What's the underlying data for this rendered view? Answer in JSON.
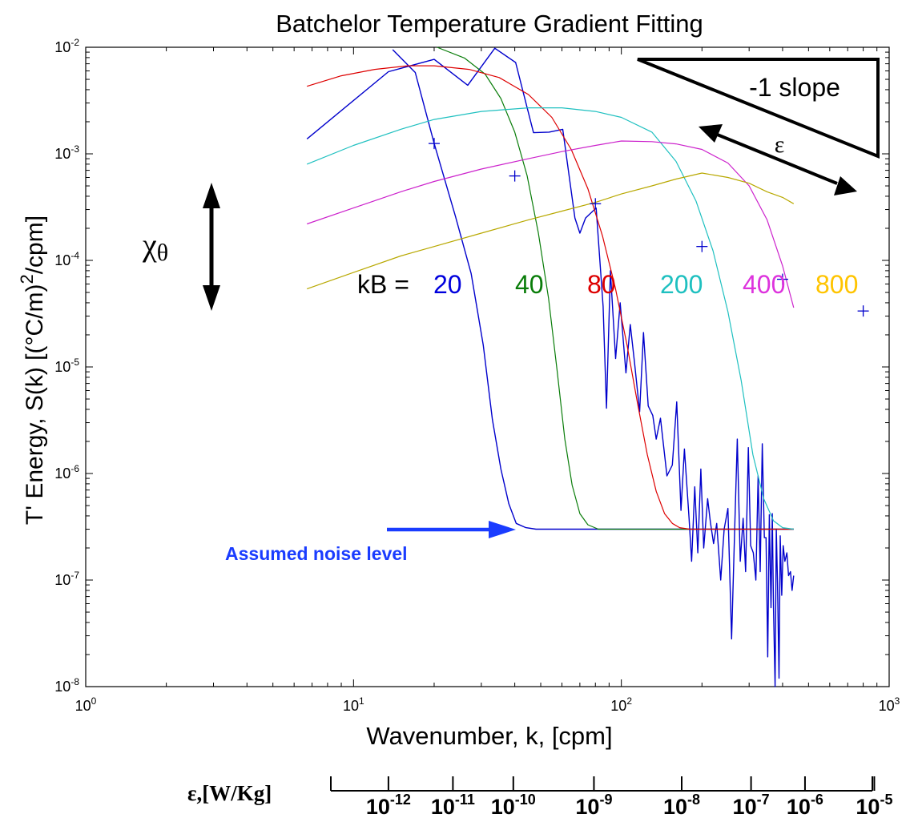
{
  "chart_data": {
    "type": "line",
    "title": "Batchelor Temperature Gradient Fitting",
    "xlabel": "Wavenumber, k, [cpm]",
    "ylabel_parts": [
      "T' Energy, S(k) [(°C/m)",
      "2",
      "/cpm]"
    ],
    "xscale": "log",
    "yscale": "log",
    "xlim": [
      1,
      1000
    ],
    "ylim": [
      1e-08,
      0.01
    ],
    "grid": false,
    "x_ticks": [
      {
        "value": 1,
        "base": "10",
        "exp": "0"
      },
      {
        "value": 10,
        "base": "10",
        "exp": "1"
      },
      {
        "value": 100,
        "base": "10",
        "exp": "2"
      },
      {
        "value": 1000,
        "base": "10",
        "exp": "3"
      }
    ],
    "y_ticks": [
      {
        "value": 0.01,
        "base": "10",
        "exp": "-2"
      },
      {
        "value": 0.001,
        "base": "10",
        "exp": "-3"
      },
      {
        "value": 0.0001,
        "base": "10",
        "exp": "-4"
      },
      {
        "value": 1e-05,
        "base": "10",
        "exp": "-5"
      },
      {
        "value": 1e-06,
        "base": "10",
        "exp": "-6"
      },
      {
        "value": 1e-07,
        "base": "10",
        "exp": "-7"
      },
      {
        "value": 1e-08,
        "base": "10",
        "exp": "-8"
      }
    ],
    "series": [
      {
        "color": "#0000cc",
        "stroke_width": 1.4,
        "points": [
          [
            6.7,
            0.00138
          ],
          [
            13.5,
            0.0059
          ],
          [
            20,
            0.0077
          ],
          [
            26.7,
            0.0044
          ],
          [
            33.7,
            0.0098
          ],
          [
            40.3,
            0.0072
          ],
          [
            47,
            0.00158
          ],
          [
            53.7,
            0.0016
          ],
          [
            60.4,
            0.0017
          ],
          [
            67.1,
            0.00025
          ],
          [
            70,
            0.00018
          ],
          [
            73.5,
            0.00025
          ],
          [
            80.5,
            0.00031
          ],
          [
            85.5,
            3.7e-05
          ],
          [
            88,
            4.1e-06
          ],
          [
            91,
            8e-05
          ],
          [
            95.2,
            1.2e-05
          ],
          [
            99,
            4e-05
          ],
          [
            104,
            8.8e-06
          ],
          [
            108,
            2.5e-05
          ],
          [
            112,
            1.1e-05
          ],
          [
            117,
            3.8e-06
          ],
          [
            121,
            2.1e-05
          ],
          [
            126,
            4.3e-06
          ],
          [
            131,
            3.5e-06
          ],
          [
            135,
            2.1e-06
          ],
          [
            140,
            3.3e-06
          ],
          [
            148,
            9.5e-07
          ],
          [
            155,
            1.2e-06
          ],
          [
            161,
            4.7e-06
          ],
          [
            167,
            4.5e-07
          ],
          [
            172,
            1.7e-06
          ],
          [
            179,
            3.8e-07
          ],
          [
            183,
            1.5e-07
          ],
          [
            188,
            7.5e-07
          ],
          [
            193,
            1.8e-07
          ],
          [
            198,
            1.1e-06
          ],
          [
            203,
            2e-07
          ],
          [
            210,
            5.8e-07
          ],
          [
            215,
            3.5e-07
          ],
          [
            221,
            2.2e-07
          ],
          [
            227,
            3.4e-07
          ],
          [
            235,
            1e-07
          ],
          [
            242,
            3e-07
          ],
          [
            250,
            4.7e-07
          ],
          [
            258,
            2.8e-08
          ],
          [
            265,
            3.1e-07
          ],
          [
            271,
            2.1e-06
          ],
          [
            278,
            1.5e-07
          ],
          [
            285,
            3.8e-07
          ],
          [
            291,
            1.2e-07
          ],
          [
            298,
            1.75e-06
          ],
          [
            304,
            2.1e-07
          ],
          [
            311,
            1.8e-07
          ],
          [
            318,
            1e-07
          ],
          [
            324,
            9.5e-07
          ],
          [
            330,
            1.2e-07
          ],
          [
            336,
            1.9e-06
          ],
          [
            342,
            2.5e-07
          ],
          [
            347,
            2.5e-07
          ],
          [
            352,
            1.9e-08
          ],
          [
            357,
            4.1e-07
          ],
          [
            362,
            5.5e-08
          ],
          [
            366,
            4.2e-07
          ],
          [
            370,
            5.5e-08
          ],
          [
            375,
            9e-09
          ],
          [
            379,
            3e-07
          ],
          [
            383,
            9.5e-08
          ],
          [
            388,
            1.2e-08
          ],
          [
            392,
            2.6e-07
          ],
          [
            397,
            7.2e-08
          ],
          [
            402,
            2.1e-07
          ],
          [
            408,
            1.5e-07
          ],
          [
            415,
            1.8e-07
          ],
          [
            421,
            1.1e-07
          ],
          [
            428,
            1.2e-07
          ],
          [
            434,
            8e-08
          ],
          [
            440,
            1.1e-07
          ]
        ]
      },
      {
        "color": "#0000cc",
        "stroke_width": 1.4,
        "points": [
          [
            14,
            0.0095
          ],
          [
            17,
            0.0058
          ],
          [
            20,
            0.00125
          ],
          [
            24,
            0.00026
          ],
          [
            27.5,
            7.5e-05
          ],
          [
            30.5,
            1.6e-05
          ],
          [
            33,
            3.2e-06
          ],
          [
            35.5,
            1.1e-06
          ],
          [
            38,
            5.2e-07
          ],
          [
            40.5,
            3.4e-07
          ],
          [
            44,
            3.1e-07
          ],
          [
            48,
            3e-07
          ],
          [
            100,
            3e-07
          ],
          [
            440,
            3e-07
          ]
        ]
      },
      {
        "color": "#0a7d0a",
        "stroke_width": 1.2,
        "points": [
          [
            20.5,
            0.01
          ],
          [
            26,
            0.0079
          ],
          [
            31,
            0.0056
          ],
          [
            35.5,
            0.0033
          ],
          [
            40,
            0.0016
          ],
          [
            44.5,
            0.00062
          ],
          [
            49,
            0.00018
          ],
          [
            53.5,
            4.4e-05
          ],
          [
            57.5,
            9.5e-06
          ],
          [
            61.5,
            2.1e-06
          ],
          [
            65.5,
            7.8e-07
          ],
          [
            70,
            4.2e-07
          ],
          [
            75,
            3.3e-07
          ],
          [
            82,
            3e-07
          ],
          [
            100,
            3e-07
          ],
          [
            440,
            3e-07
          ]
        ]
      },
      {
        "color": "#dd0000",
        "stroke_width": 1.2,
        "points": [
          [
            6.7,
            0.0043
          ],
          [
            9,
            0.0054
          ],
          [
            12,
            0.0062
          ],
          [
            16,
            0.0067
          ],
          [
            20,
            0.0067
          ],
          [
            27,
            0.0062
          ],
          [
            35,
            0.0052
          ],
          [
            45,
            0.0036
          ],
          [
            55,
            0.0022
          ],
          [
            65,
            0.0011
          ],
          [
            75,
            0.00047
          ],
          [
            85,
            0.00017
          ],
          [
            95,
            5.5e-05
          ],
          [
            105,
            1.6e-05
          ],
          [
            115,
            4.5e-06
          ],
          [
            125,
            1.5e-06
          ],
          [
            135,
            6.8e-07
          ],
          [
            145,
            4.2e-07
          ],
          [
            155,
            3.4e-07
          ],
          [
            165,
            3.1e-07
          ],
          [
            180,
            3e-07
          ],
          [
            440,
            3e-07
          ]
        ]
      },
      {
        "color": "#1fc0c0",
        "stroke_width": 1.2,
        "points": [
          [
            6.7,
            0.0008
          ],
          [
            10,
            0.0012
          ],
          [
            15,
            0.0017
          ],
          [
            20,
            0.0021
          ],
          [
            30,
            0.0025
          ],
          [
            45,
            0.0027
          ],
          [
            60,
            0.0027
          ],
          [
            80,
            0.0025
          ],
          [
            100,
            0.0022
          ],
          [
            130,
            0.0016
          ],
          [
            160,
            0.00085
          ],
          [
            190,
            0.00036
          ],
          [
            220,
            0.000123
          ],
          [
            250,
            3.3e-05
          ],
          [
            280,
            7.5e-06
          ],
          [
            310,
            1.5e-06
          ],
          [
            340,
            5.8e-07
          ],
          [
            370,
            3.6e-07
          ],
          [
            400,
            3.1e-07
          ],
          [
            440,
            3e-07
          ]
        ]
      },
      {
        "color": "#cc22cc",
        "stroke_width": 1.2,
        "points": [
          [
            6.7,
            0.00022
          ],
          [
            10,
            0.00031
          ],
          [
            15,
            0.00044
          ],
          [
            20,
            0.00055
          ],
          [
            30,
            0.00072
          ],
          [
            45,
            0.0009
          ],
          [
            60,
            0.00105
          ],
          [
            80,
            0.0012
          ],
          [
            100,
            0.00132
          ],
          [
            130,
            0.0013
          ],
          [
            160,
            0.00124
          ],
          [
            200,
            0.0011
          ],
          [
            250,
            0.00082
          ],
          [
            300,
            0.0005
          ],
          [
            350,
            0.00024
          ],
          [
            400,
            8.85e-05
          ],
          [
            440,
            3.6e-05
          ]
        ]
      },
      {
        "color": "#b8a800",
        "stroke_width": 1.2,
        "points": [
          [
            6.7,
            5.4e-05
          ],
          [
            10,
            7.7e-05
          ],
          [
            15,
            0.00011
          ],
          [
            20,
            0.000135
          ],
          [
            30,
            0.00018
          ],
          [
            45,
            0.00024
          ],
          [
            60,
            0.00029
          ],
          [
            80,
            0.00035
          ],
          [
            100,
            0.00042
          ],
          [
            130,
            0.0005
          ],
          [
            160,
            0.00058
          ],
          [
            200,
            0.00066
          ],
          [
            250,
            0.0006
          ],
          [
            300,
            0.00053
          ],
          [
            350,
            0.00044
          ],
          [
            400,
            0.00039
          ],
          [
            440,
            0.00034
          ]
        ]
      }
    ],
    "markers": {
      "color": "#0000cc",
      "points": [
        [
          20,
          0.00125
        ],
        [
          40,
          0.00062
        ],
        [
          80,
          0.00034
        ],
        [
          200,
          0.000135
        ],
        [
          400,
          6.65e-05
        ],
        [
          800,
          3.35e-05
        ]
      ]
    },
    "kb_labels": {
      "prefix": "kB =",
      "items": [
        {
          "text": "20",
          "color": "#0000dd"
        },
        {
          "text": "40",
          "color": "#0a7d0a"
        },
        {
          "text": "80",
          "color": "#dd0000"
        },
        {
          "text": "200",
          "color": "#1fc0c0"
        },
        {
          "text": "400",
          "color": "#dd33dd"
        },
        {
          "text": "800",
          "color": "#ffc400"
        }
      ]
    },
    "annotations": {
      "chi_symbol": "χ",
      "chi_subscript": "θ",
      "slope_label": "-1 slope",
      "epsilon_symbol": "ε",
      "noise_label": "Assumed noise level",
      "noise_color": "#1a3cff"
    },
    "epsilon_axis": {
      "label": "ε,[W/Kg]",
      "ticks": [
        {
          "x": 13.5,
          "base": "10",
          "exp": "-12"
        },
        {
          "x": 23.5,
          "base": "10",
          "exp": "-11"
        },
        {
          "x": 39.5,
          "base": "10",
          "exp": "-10"
        },
        {
          "x": 79,
          "base": "10",
          "exp": "-9"
        },
        {
          "x": 168,
          "base": "10",
          "exp": "-8"
        },
        {
          "x": 305,
          "base": "10",
          "exp": "-7"
        },
        {
          "x": 485,
          "base": "10",
          "exp": "-6"
        },
        {
          "x": 880,
          "base": "10",
          "exp": "-5"
        }
      ]
    }
  }
}
